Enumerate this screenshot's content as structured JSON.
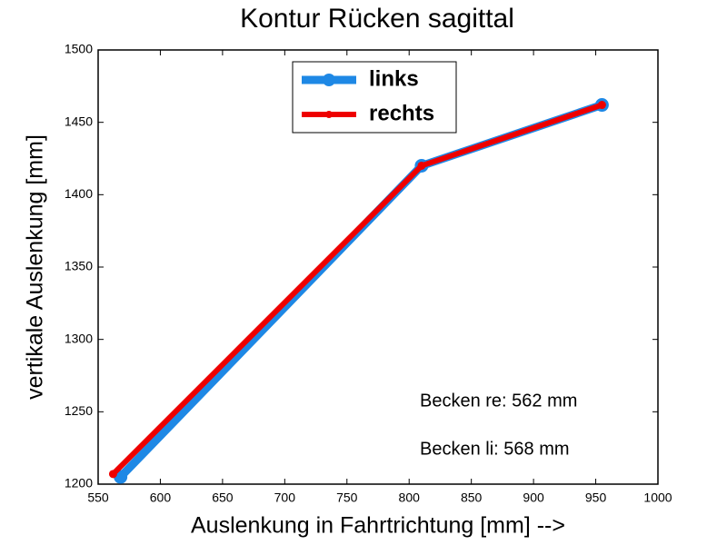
{
  "chart_data": {
    "type": "line",
    "title": "Kontur Rücken sagittal",
    "x_label": "Auslenkung in Fahrtrichtung [mm] -->",
    "y_label": "vertikale Auslenkung [mm]",
    "series": [
      {
        "name": "links",
        "color": "#1e88e5",
        "x": [
          568,
          810,
          955
        ],
        "values": [
          1205,
          1420,
          1462
        ]
      },
      {
        "name": "rechts",
        "color": "#ee0000",
        "x": [
          562,
          810,
          955
        ],
        "values": [
          1207,
          1420,
          1462
        ]
      }
    ],
    "xlim": [
      550,
      1000
    ],
    "xticks": [
      550,
      600,
      650,
      700,
      750,
      800,
      850,
      900,
      950,
      1000
    ],
    "ylim": [
      1200,
      1500
    ],
    "yticks": [
      1200,
      1250,
      1300,
      1350,
      1400,
      1450,
      1500
    ],
    "grid": false,
    "legend": "north",
    "annotations": [
      "Becken re: 562 mm",
      "Becken li: 568 mm"
    ]
  }
}
